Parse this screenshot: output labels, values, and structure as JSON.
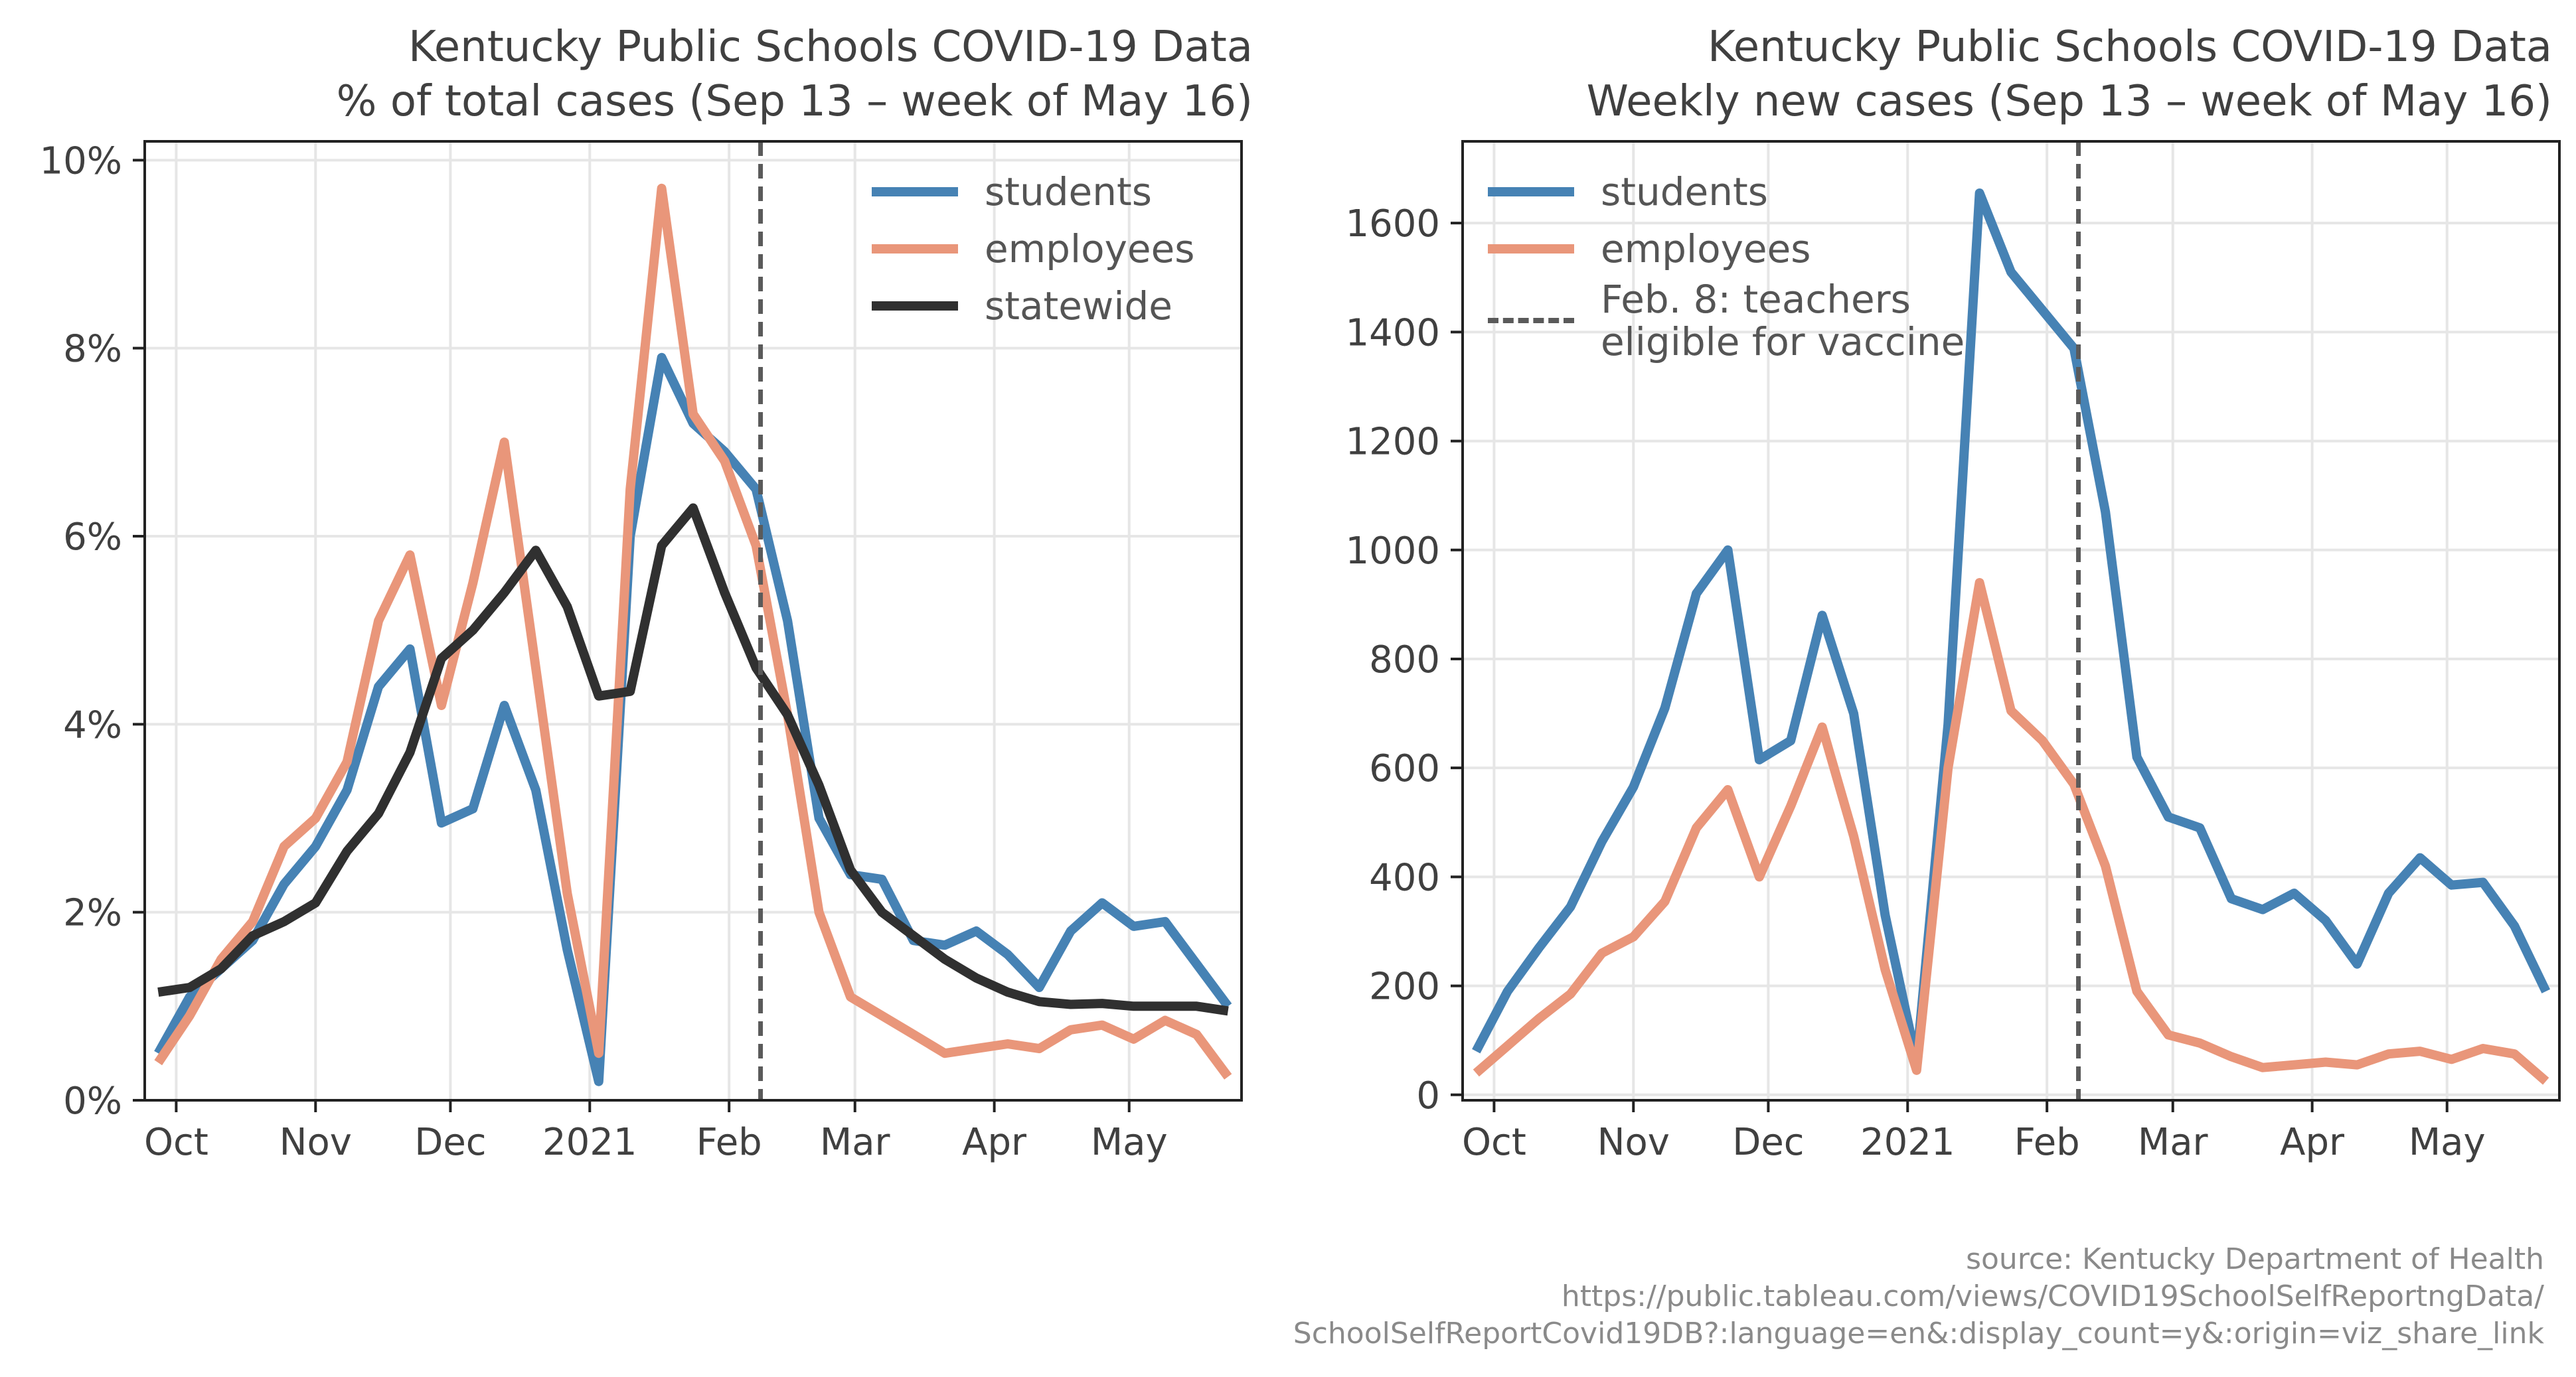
{
  "figure": {
    "left_title_line1": "Kentucky Public Schools COVID-19 Data",
    "left_title_line2": "% of total cases (Sep 13 – week of May 16)",
    "right_title_line1": "Kentucky Public Schools COVID-19 Data",
    "right_title_line2": "Weekly new cases (Sep 13 – week of May 16)",
    "source_line1": "source: Kentucky Department of Health",
    "source_line2": "https://public.tableau.com/views/COVID19SchoolSelfReportngData/",
    "source_line3": "SchoolSelfReportCovid19DB?:language=en&:display_count=y&:origin=viz_share_link"
  },
  "legend_left": {
    "students": "students",
    "employees": "employees",
    "statewide": "statewide"
  },
  "legend_right": {
    "students": "students",
    "employees": "employees",
    "vline_line1": "Feb. 8: teachers",
    "vline_line2": "eligible for vaccine"
  },
  "colors": {
    "students": "#4682b4",
    "employees": "#e9967a",
    "statewide": "#303030",
    "vline": "#5a5a5a",
    "grid": "#e6e6e6"
  },
  "chart_data": [
    {
      "type": "line",
      "title": "Kentucky Public Schools COVID-19 Data\n% of total cases (Sep 13 – week of May 16)",
      "x_label_ticks": [
        "Oct",
        "Nov",
        "Dec",
        "2021",
        "Feb",
        "Mar",
        "Apr",
        "May"
      ],
      "x_tick_dates": [
        "2020-10-01",
        "2020-11-01",
        "2020-12-01",
        "2021-01-01",
        "2021-02-01",
        "2021-03-01",
        "2021-04-01",
        "2021-05-01"
      ],
      "x": [
        "2020-09-27",
        "2020-10-04",
        "2020-10-11",
        "2020-10-18",
        "2020-10-25",
        "2020-11-01",
        "2020-11-08",
        "2020-11-15",
        "2020-11-22",
        "2020-11-29",
        "2020-12-06",
        "2020-12-13",
        "2020-12-20",
        "2020-12-27",
        "2021-01-03",
        "2021-01-10",
        "2021-01-17",
        "2021-01-24",
        "2021-01-31",
        "2021-02-07",
        "2021-02-14",
        "2021-02-21",
        "2021-02-28",
        "2021-03-07",
        "2021-03-14",
        "2021-03-21",
        "2021-03-28",
        "2021-04-04",
        "2021-04-11",
        "2021-04-18",
        "2021-04-25",
        "2021-05-02",
        "2021-05-09",
        "2021-05-16",
        "2021-05-23"
      ],
      "xlim": [
        "2020-09-27",
        "2021-05-23"
      ],
      "ylim": [
        0,
        10.2
      ],
      "y_ticks": [
        "0%",
        "2%",
        "4%",
        "6%",
        "8%",
        "10%"
      ],
      "y_tick_values": [
        0,
        2,
        4,
        6,
        8,
        10
      ],
      "grid": true,
      "series": [
        {
          "name": "students",
          "values": [
            0.5,
            1.1,
            1.4,
            1.7,
            2.3,
            2.7,
            3.3,
            4.4,
            4.8,
            2.95,
            3.1,
            4.2,
            3.3,
            1.6,
            0.2,
            6.0,
            7.9,
            7.2,
            6.9,
            6.5,
            5.1,
            3.0,
            2.4,
            2.35,
            1.7,
            1.65,
            1.8,
            1.55,
            1.2,
            1.8,
            2.1,
            1.85,
            1.9,
            1.45,
            1.0
          ]
        },
        {
          "name": "employees",
          "values": [
            0.4,
            0.9,
            1.5,
            1.9,
            2.7,
            3.0,
            3.6,
            5.1,
            5.8,
            4.2,
            5.5,
            7.0,
            4.6,
            2.2,
            0.5,
            6.5,
            9.7,
            7.3,
            6.8,
            5.9,
            4.1,
            2.0,
            1.1,
            0.9,
            0.7,
            0.5,
            0.55,
            0.6,
            0.55,
            0.75,
            0.8,
            0.65,
            0.85,
            0.7,
            0.25
          ]
        },
        {
          "name": "statewide",
          "values": [
            1.15,
            1.2,
            1.4,
            1.75,
            1.9,
            2.1,
            2.65,
            3.05,
            3.7,
            4.7,
            5.0,
            5.4,
            5.85,
            5.25,
            4.3,
            4.35,
            5.9,
            6.3,
            5.4,
            4.6,
            4.1,
            3.35,
            2.45,
            2.0,
            1.75,
            1.5,
            1.3,
            1.15,
            1.05,
            1.02,
            1.03,
            1.0,
            1.0,
            1.0,
            0.95
          ]
        }
      ],
      "vline_date": "2021-02-08",
      "legend_position": "top-right"
    },
    {
      "type": "line",
      "title": "Kentucky Public Schools COVID-19 Data\nWeekly new cases (Sep 13 – week of May 16)",
      "x_label_ticks": [
        "Oct",
        "Nov",
        "Dec",
        "2021",
        "Feb",
        "Mar",
        "Apr",
        "May"
      ],
      "x_tick_dates": [
        "2020-10-01",
        "2020-11-01",
        "2020-12-01",
        "2021-01-01",
        "2021-02-01",
        "2021-03-01",
        "2021-04-01",
        "2021-05-01"
      ],
      "x": [
        "2020-09-27",
        "2020-10-04",
        "2020-10-11",
        "2020-10-18",
        "2020-10-25",
        "2020-11-01",
        "2020-11-08",
        "2020-11-15",
        "2020-11-22",
        "2020-11-29",
        "2020-12-06",
        "2020-12-13",
        "2020-12-20",
        "2020-12-27",
        "2021-01-03",
        "2021-01-10",
        "2021-01-17",
        "2021-01-24",
        "2021-01-31",
        "2021-02-07",
        "2021-02-14",
        "2021-02-21",
        "2021-02-28",
        "2021-03-07",
        "2021-03-14",
        "2021-03-21",
        "2021-03-28",
        "2021-04-04",
        "2021-04-11",
        "2021-04-18",
        "2021-04-25",
        "2021-05-02",
        "2021-05-09",
        "2021-05-16",
        "2021-05-23"
      ],
      "xlim": [
        "2020-09-27",
        "2021-05-23"
      ],
      "ylim": [
        -10,
        1750
      ],
      "y_ticks": [
        "0",
        "200",
        "400",
        "600",
        "800",
        "1000",
        "1200",
        "1400",
        "1600"
      ],
      "y_tick_values": [
        0,
        200,
        400,
        600,
        800,
        1000,
        1200,
        1400,
        1600
      ],
      "grid": true,
      "series": [
        {
          "name": "students",
          "values": [
            80,
            190,
            270,
            345,
            465,
            565,
            710,
            920,
            1000,
            615,
            650,
            880,
            700,
            330,
            60,
            680,
            1655,
            1510,
            1440,
            1370,
            1070,
            620,
            510,
            490,
            360,
            340,
            370,
            320,
            240,
            370,
            435,
            385,
            390,
            310,
            190
          ]
        },
        {
          "name": "employees",
          "values": [
            40,
            90,
            140,
            185,
            260,
            290,
            355,
            490,
            560,
            400,
            530,
            675,
            475,
            230,
            45,
            600,
            940,
            705,
            650,
            570,
            420,
            190,
            110,
            95,
            70,
            50,
            55,
            60,
            55,
            75,
            80,
            65,
            85,
            75,
            25
          ]
        }
      ],
      "vline_date": "2021-02-08",
      "legend_position": "top-left"
    }
  ]
}
